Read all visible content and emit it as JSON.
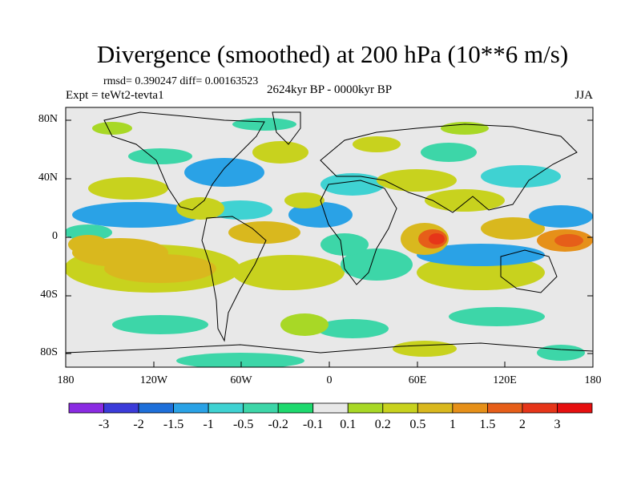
{
  "title": "Divergence (smoothed) at 200 hPa (10**6 m/s)",
  "stats": "rmsd= 0.390247 diff= 0.00163523",
  "experiment": "Expt = teWt2-tevta1",
  "period": "2624kyr BP - 0000kyr BP",
  "season": "JJA",
  "axes": {
    "y_labels": [
      "80N",
      "40N",
      "0",
      "40S",
      "80S"
    ],
    "x_labels": [
      "180",
      "120W",
      "60W",
      "0",
      "60E",
      "120E",
      "180"
    ]
  },
  "colorbar": {
    "labels": [
      "-3",
      "-2",
      "-1.5",
      "-1",
      "-0.5",
      "-0.2",
      "-0.1",
      "0.1",
      "0.2",
      "0.5",
      "1",
      "1.5",
      "2",
      "3"
    ],
    "colors": [
      "#8a2be2",
      "#3b3bd9",
      "#1e6fd9",
      "#2aa2e6",
      "#3fd2d2",
      "#3dd6a8",
      "#1ed96e",
      "#e8e8e8",
      "#a8d826",
      "#c8d21e",
      "#d9b81e",
      "#e69019",
      "#e65e19",
      "#e63519",
      "#e60f0f"
    ]
  },
  "colors": {
    "background": "#e8e8e8",
    "coast": "#000000"
  }
}
